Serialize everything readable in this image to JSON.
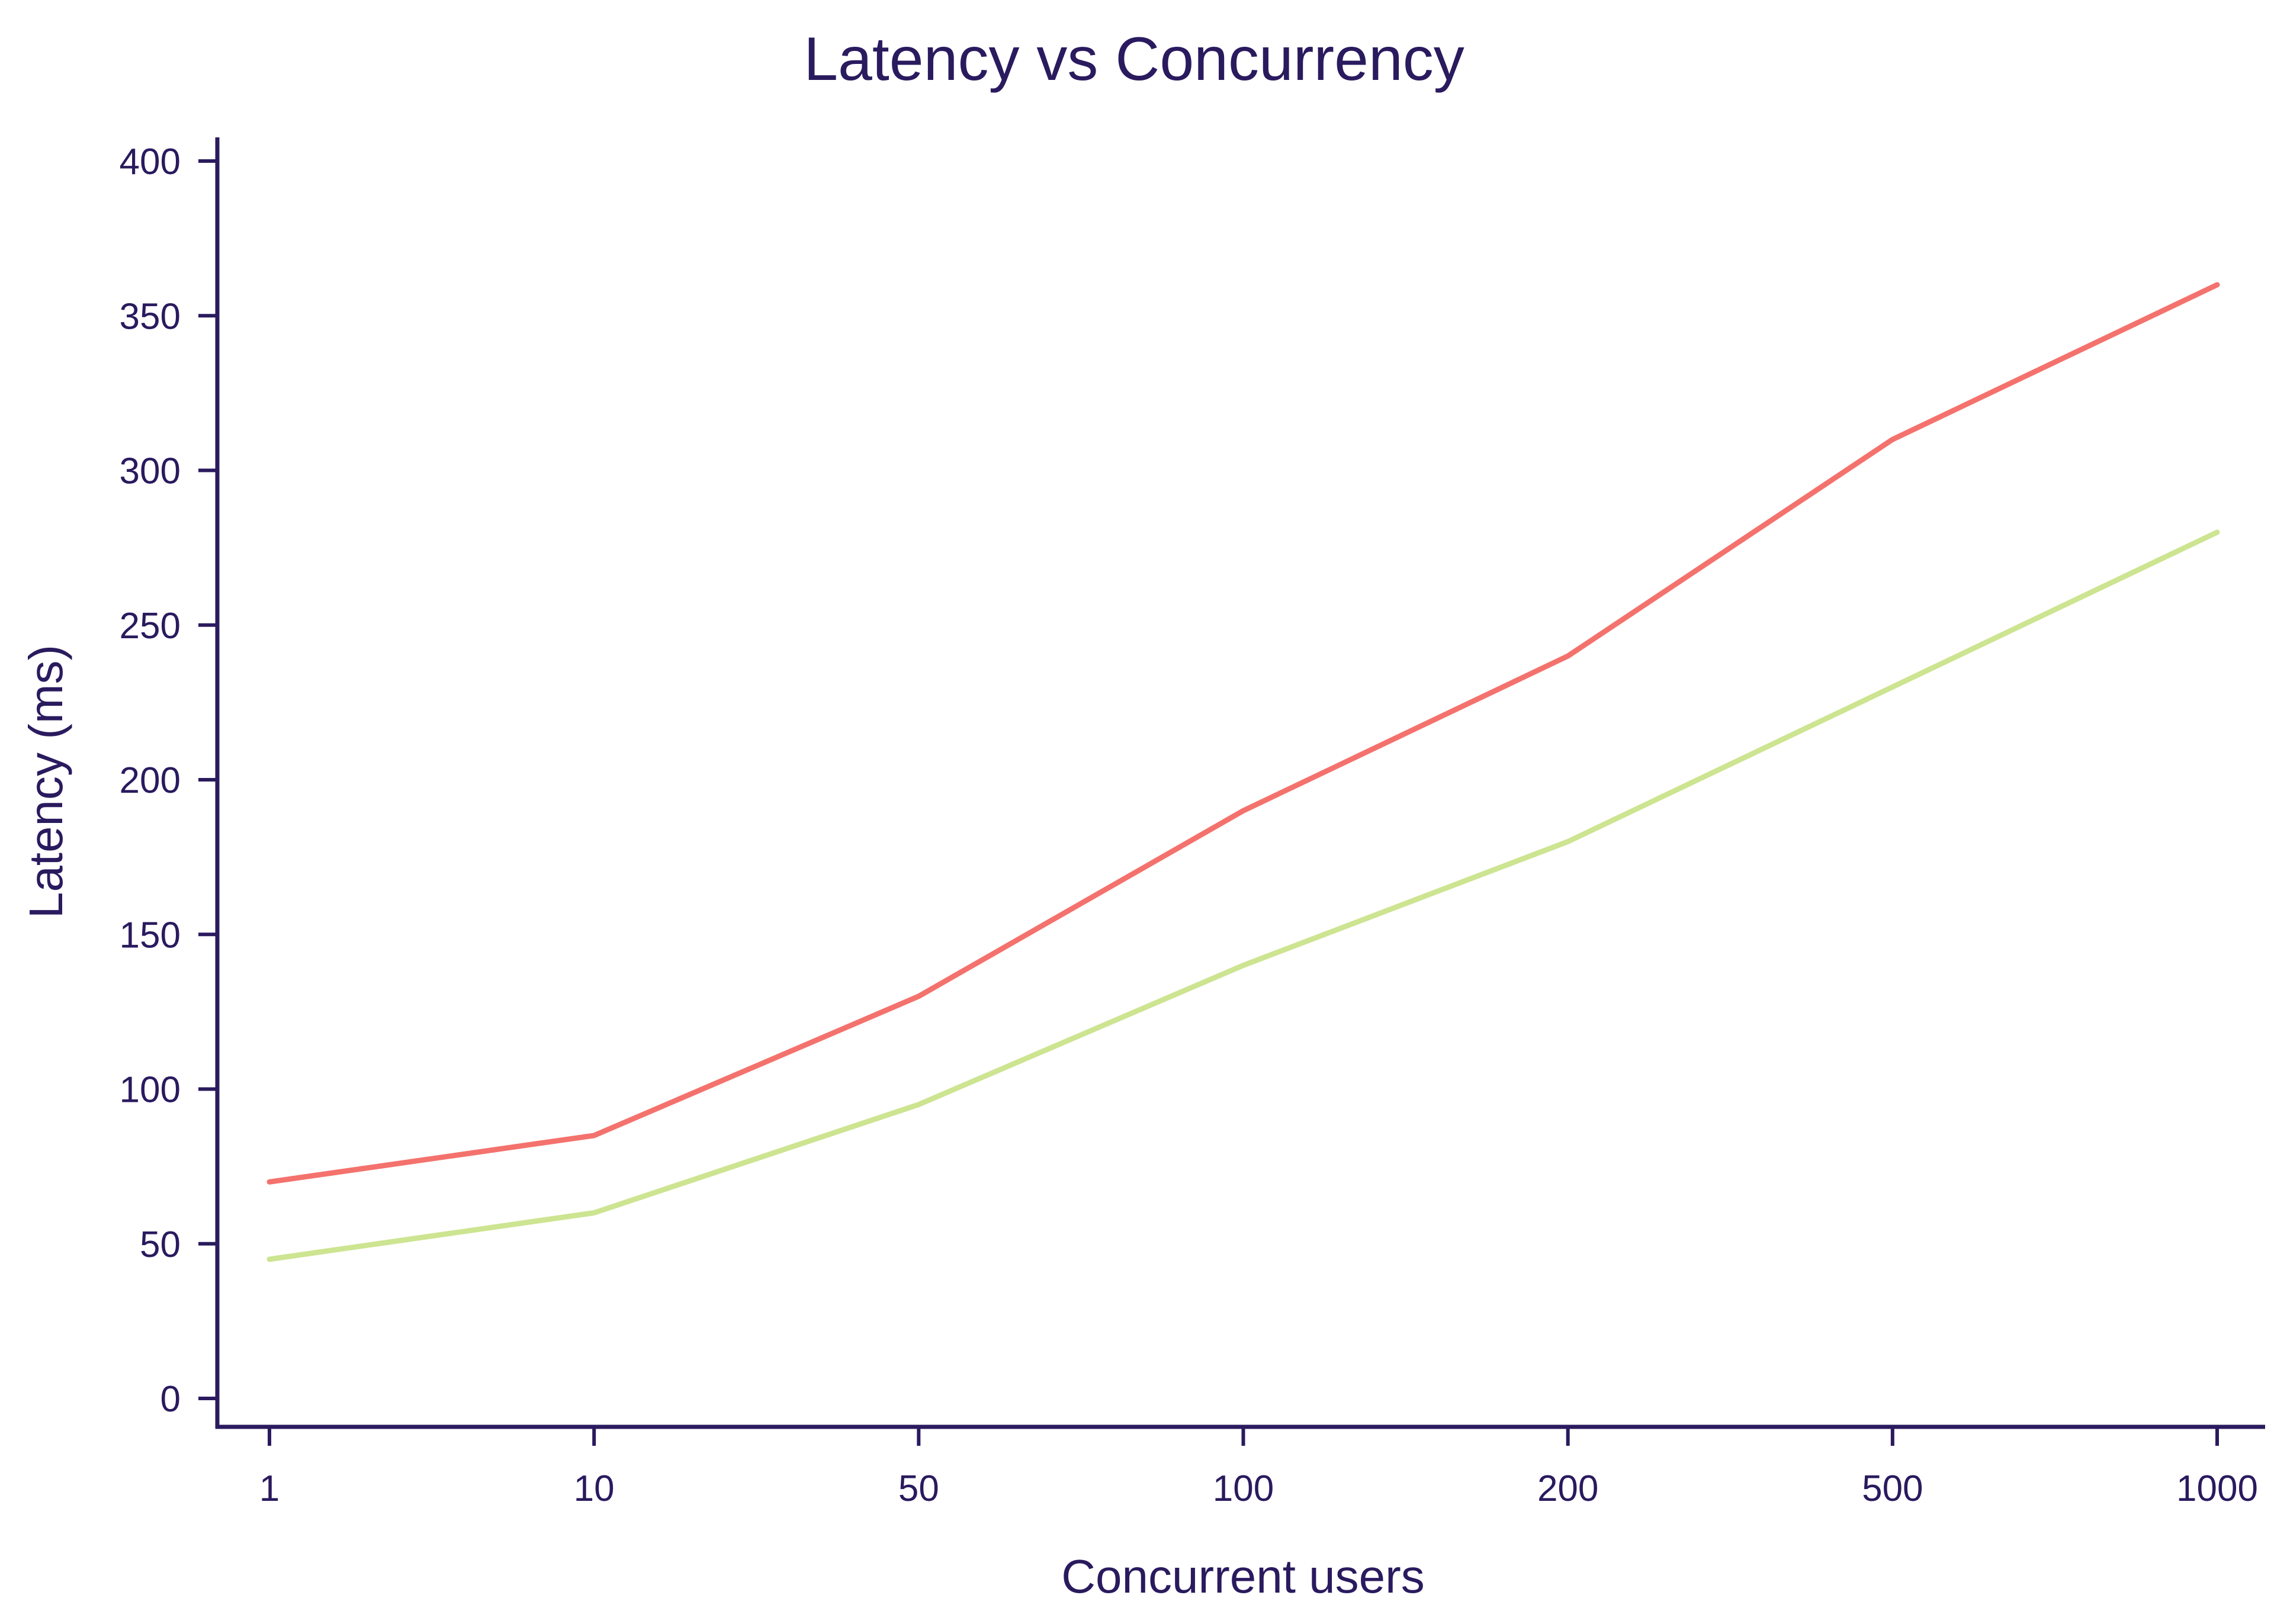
{
  "colors": {
    "axis": "#2a1a5e",
    "text": "#2a1a5e",
    "background": "#ffffff"
  },
  "chart_data": {
    "type": "line",
    "title": "Latency vs Concurrency",
    "xlabel": "Concurrent users",
    "ylabel": "Latency (ms)",
    "categories": [
      "1",
      "10",
      "50",
      "100",
      "200",
      "500",
      "1000"
    ],
    "ylim": [
      0,
      400
    ],
    "yticks": [
      0,
      50,
      100,
      150,
      200,
      250,
      300,
      350,
      400
    ],
    "grid": false,
    "legend": "none",
    "series": [
      {
        "color": "#f4726d",
        "values": [
          70,
          85,
          130,
          190,
          240,
          310,
          360
        ]
      },
      {
        "color": "#cde491",
        "values": [
          45,
          60,
          95,
          140,
          180,
          230,
          280
        ]
      }
    ]
  }
}
